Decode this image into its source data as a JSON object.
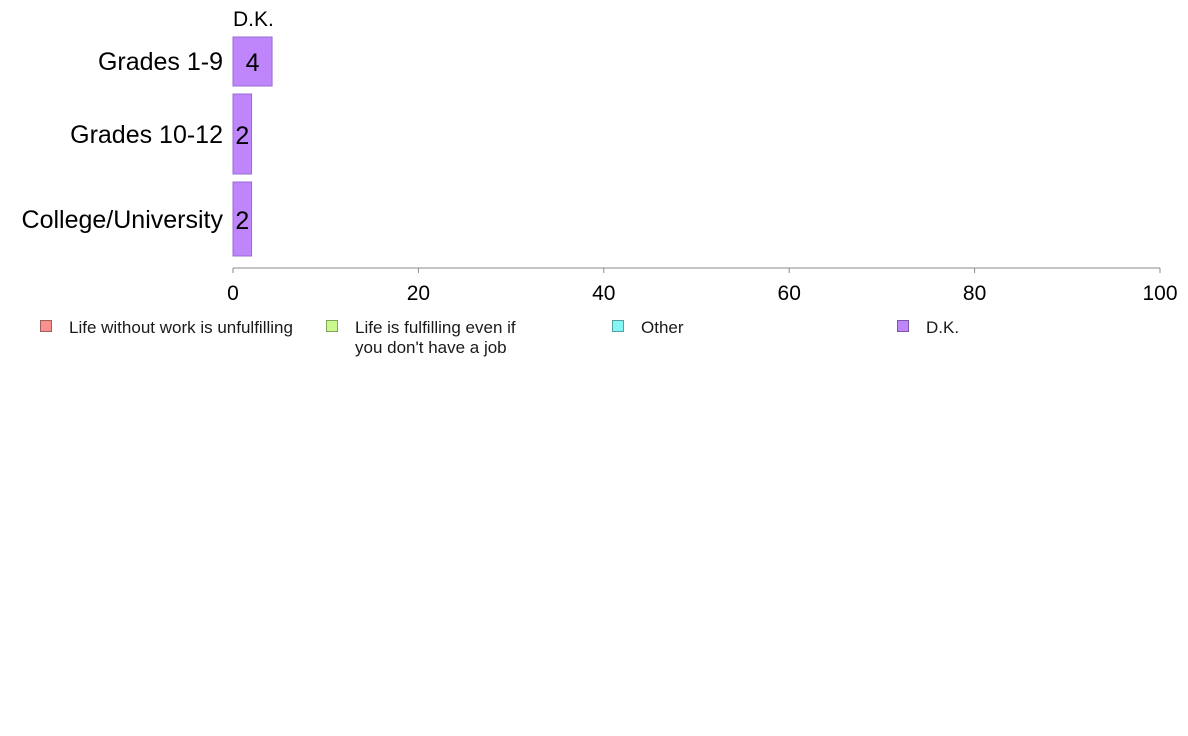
{
  "chart_data": {
    "type": "bar",
    "orientation": "horizontal",
    "panel_title": "D.K.",
    "categories": [
      "Grades 1-9",
      "Grades 10-12",
      "College/University"
    ],
    "series": [
      {
        "name": "D.K.",
        "values": [
          4,
          2,
          2
        ],
        "labels": [
          "4",
          "2",
          "2"
        ],
        "color": "#bf85fa"
      }
    ],
    "xlim": [
      0,
      100
    ],
    "xticks": [
      "0",
      "20",
      "40",
      "60",
      "80",
      "100"
    ],
    "grid": false,
    "legend_position": "bottom"
  },
  "legend": [
    {
      "label": "Life without work is unfulfilling",
      "color": "#f8928e"
    },
    {
      "label": "Life is fulfilling even if\nyou don't have a job",
      "color": "#c9f98d"
    },
    {
      "label": "Other",
      "color": "#84f7f4"
    },
    {
      "label": "D.K.",
      "color": "#bf85fa"
    }
  ]
}
